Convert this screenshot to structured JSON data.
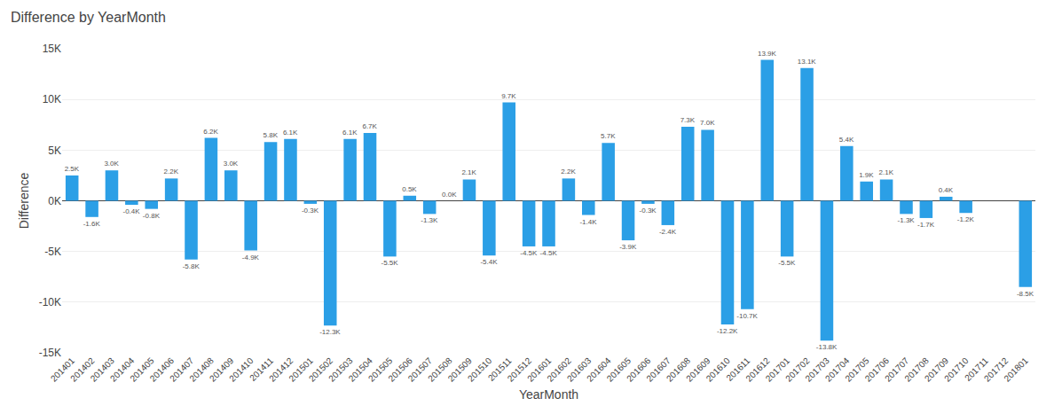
{
  "chart_data": {
    "type": "bar",
    "title": "Difference by YearMonth",
    "xlabel": "YearMonth",
    "ylabel": "Difference",
    "categories": [
      "201401",
      "201402",
      "201403",
      "201404",
      "201405",
      "201406",
      "201407",
      "201408",
      "201409",
      "201410",
      "201411",
      "201412",
      "201501",
      "201502",
      "201503",
      "201504",
      "201505",
      "201506",
      "201507",
      "201508",
      "201509",
      "201510",
      "201511",
      "201512",
      "201601",
      "201602",
      "201603",
      "201604",
      "201605",
      "201606",
      "201607",
      "201608",
      "201609",
      "201610",
      "201611",
      "201612",
      "201701",
      "201702",
      "201703",
      "201704",
      "201705",
      "201706",
      "201707",
      "201708",
      "201709",
      "201710",
      "201711",
      "201712",
      "201801"
    ],
    "values": [
      2500,
      -1600,
      3000,
      -400,
      -800,
      2200,
      -5800,
      6200,
      3000,
      -4900,
      5800,
      6100,
      -300,
      -12300,
      6100,
      6700,
      -5500,
      500,
      -1300,
      0,
      2100,
      -5400,
      9700,
      -4500,
      -4500,
      2200,
      -1400,
      5700,
      -3900,
      -300,
      -2400,
      7300,
      7000,
      -12200,
      -10700,
      13900,
      -5500,
      13100,
      -13800,
      5400,
      1900,
      2100,
      -1300,
      -1700,
      400,
      -1200,
      0,
      0,
      -8500
    ],
    "value_labels": [
      "2.5K",
      "-1.6K",
      "3.0K",
      "-0.4K",
      "-0.8K",
      "2.2K",
      "-5.8K",
      "6.2K",
      "3.0K",
      "-4.9K",
      "5.8K",
      "6.1K",
      "-0.3K",
      "-12.3K",
      "6.1K",
      "6.7K",
      "-5.5K",
      "0.5K",
      "-1.3K",
      "0.0K",
      "2.1K",
      "-5.4K",
      "9.7K",
      "-4.5K",
      "-4.5K",
      "2.2K",
      "-1.4K",
      "5.7K",
      "-3.9K",
      "-0.3K",
      "-2.4K",
      "7.3K",
      "7.0K",
      "-12.2K",
      "-10.7K",
      "13.9K",
      "-5.5K",
      "13.1K",
      "-13.8K",
      "5.4K",
      "1.9K",
      "2.1K",
      "-1.3K",
      "-1.7K",
      "0.4K",
      "-1.2K",
      null,
      null,
      "-8.5K"
    ],
    "color": "#2B9FE6",
    "ylim": [
      -15000,
      15000
    ],
    "yticks": [
      {
        "value": -15000,
        "label": "-15K"
      },
      {
        "value": -10000,
        "label": "-10K"
      },
      {
        "value": -5000,
        "label": "-5K"
      },
      {
        "value": 0,
        "label": "0K"
      },
      {
        "value": 5000,
        "label": "5K"
      },
      {
        "value": 10000,
        "label": "10K"
      },
      {
        "value": 15000,
        "label": "15K"
      }
    ],
    "grid": true,
    "data_labels": true
  }
}
